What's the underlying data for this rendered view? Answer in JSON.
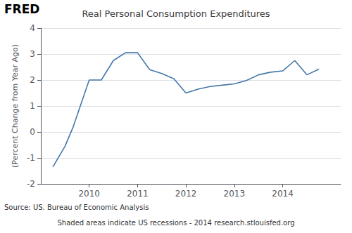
{
  "chart_data": {
    "type": "line",
    "title": "Real Personal Consumption Expenditures",
    "y_label": "(Percent Change from Year Ago)",
    "annotations": [
      "FRED",
      "Source: US. Bureau of Economic Analysis",
      "Shaded areas indicate US recessions - 2014 research.stlouisfed.org"
    ],
    "x": [
      2009.25,
      2009.5,
      2009.67,
      2010.0,
      2010.25,
      2010.5,
      2010.75,
      2011.0,
      2011.25,
      2011.5,
      2011.75,
      2012.0,
      2012.25,
      2012.5,
      2012.75,
      2013.0,
      2013.25,
      2013.5,
      2013.75,
      2014.0,
      2014.25,
      2014.5,
      2014.75
    ],
    "values": [
      -1.35,
      -0.55,
      0.2,
      2.0,
      2.0,
      2.75,
      3.05,
      3.05,
      2.4,
      2.25,
      2.05,
      1.5,
      1.65,
      1.75,
      1.8,
      1.85,
      1.98,
      2.2,
      2.3,
      2.35,
      2.75,
      2.2,
      2.42
    ],
    "color": "#4477aa",
    "xlim": [
      2009.0,
      2015.2
    ],
    "xticks": [
      2010,
      2011,
      2012,
      2013,
      2014
    ],
    "ylim": [
      -2,
      4
    ],
    "yticks": [
      -2,
      -1,
      0,
      1,
      2,
      3,
      4
    ],
    "grid": "y"
  }
}
